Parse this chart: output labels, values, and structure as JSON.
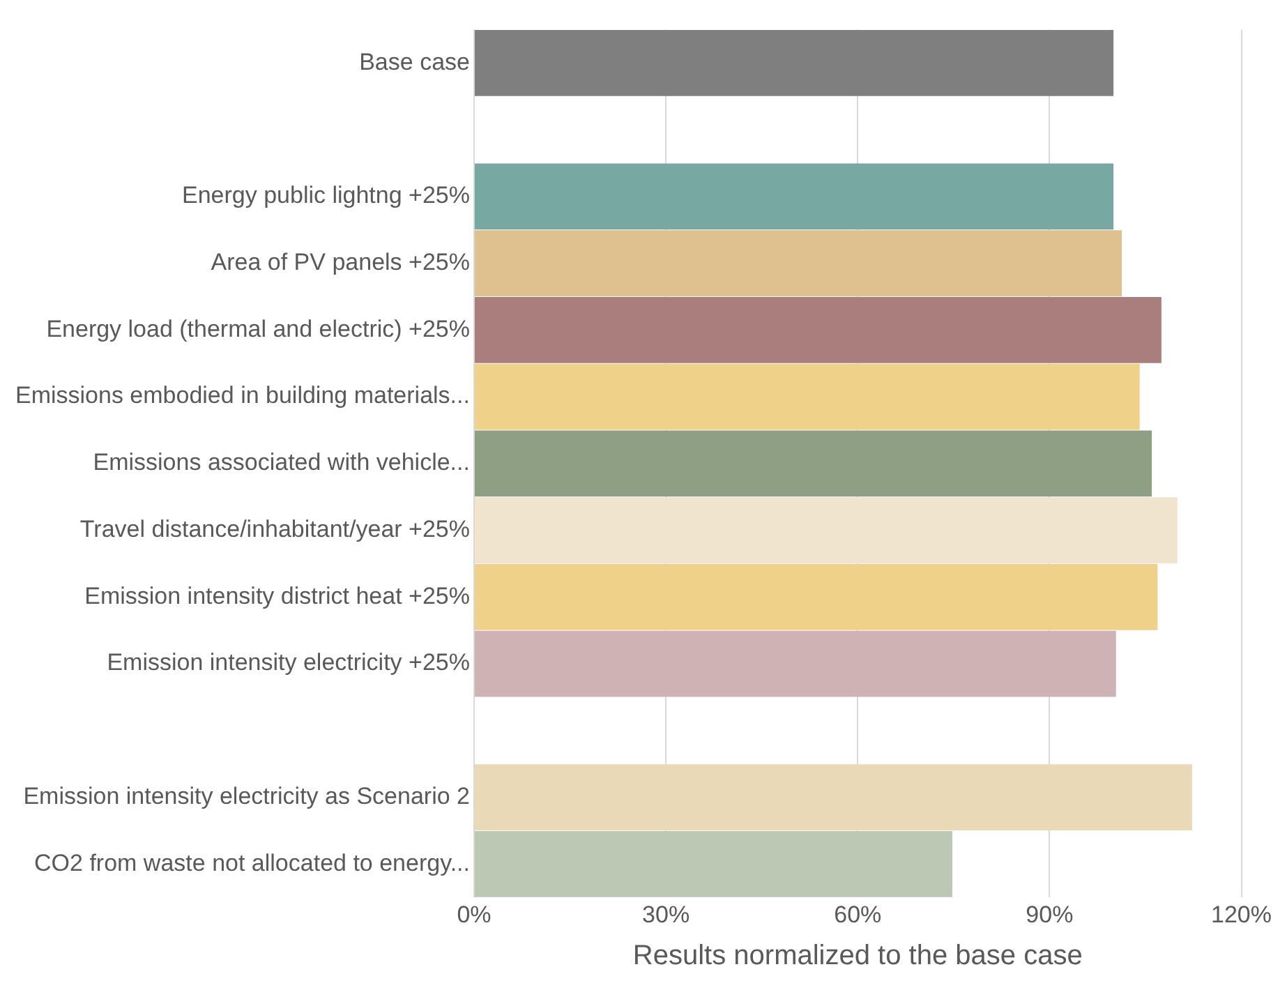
{
  "chart_data": {
    "type": "bar",
    "orientation": "horizontal",
    "xlabel": "Results normalized to the base case",
    "categories": [
      "Base case",
      null,
      "Energy public lightng +25%",
      "Area of PV panels +25%",
      "Energy load (thermal and electric) +25%",
      "Emissions embodied in building materials...",
      "Emissions associated with vehicle...",
      "Travel distance/inhabitant/year +25%",
      "Emission intensity district heat +25%",
      "Emission intensity electricity +25%",
      null,
      "Emission intensity electricity as Scenario 2",
      "CO2 from waste not allocated to energy..."
    ],
    "values": [
      100,
      null,
      100,
      101.3,
      107.5,
      104.1,
      106,
      110,
      106.9,
      100.4,
      null,
      112.3,
      74.8
    ],
    "colors": [
      "#7f7f7f",
      null,
      "#78a8a2",
      "#dfc08f",
      "#aa7e7c",
      "#efd18a",
      "#8f9f83",
      "#f0e4cf",
      "#efd18a",
      "#cfb2b4",
      null,
      "#e9d9b7",
      "#bcc7b4"
    ],
    "xlim": [
      0,
      120
    ],
    "xticks": [
      {
        "value": 0,
        "label": "0%"
      },
      {
        "value": 30,
        "label": "30%"
      },
      {
        "value": 60,
        "label": "60%"
      },
      {
        "value": 90,
        "label": "90%"
      },
      {
        "value": 120,
        "label": "120%"
      }
    ],
    "grid": "x"
  }
}
